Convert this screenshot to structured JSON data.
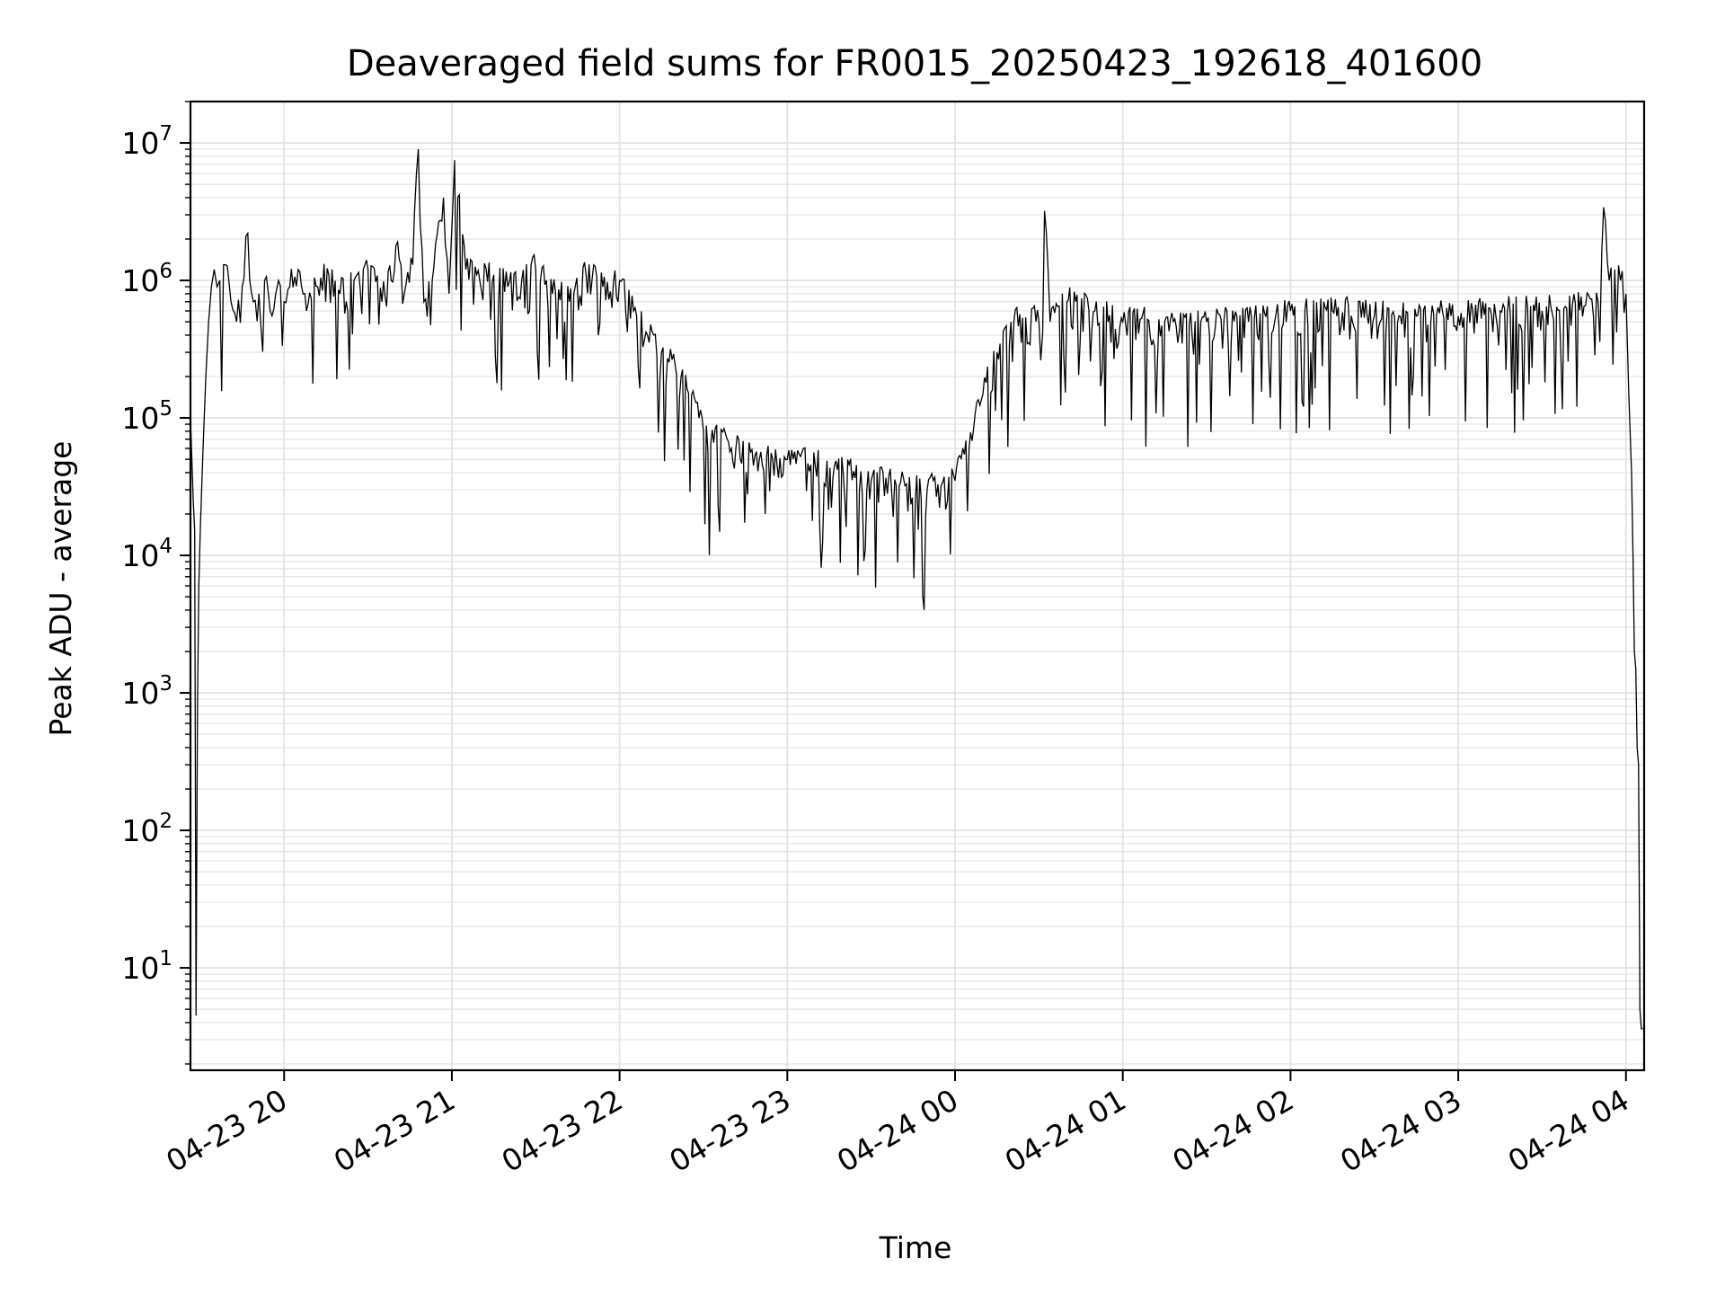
{
  "chart_data": {
    "type": "line",
    "title": "Deaveraged field sums for FR0015_20250423_192618_401600",
    "xlabel": "Time",
    "ylabel": "Peak ADU - average",
    "yscale": "log",
    "ylim": [
      1.8,
      20000000
    ],
    "xlim": [
      "2025-04-23 19:26:30",
      "2025-04-24 04:06:30"
    ],
    "grid": true,
    "line_color": "#000000",
    "grid_color": "#e3e3e3",
    "x_ticks": [
      {
        "value": "2025-04-23 20:00",
        "label": "04-23 20"
      },
      {
        "value": "2025-04-23 21:00",
        "label": "04-23 21"
      },
      {
        "value": "2025-04-23 22:00",
        "label": "04-23 22"
      },
      {
        "value": "2025-04-23 23:00",
        "label": "04-23 23"
      },
      {
        "value": "2025-04-24 00:00",
        "label": "04-24 00"
      },
      {
        "value": "2025-04-24 01:00",
        "label": "04-24 01"
      },
      {
        "value": "2025-04-24 02:00",
        "label": "04-24 02"
      },
      {
        "value": "2025-04-24 03:00",
        "label": "04-24 03"
      },
      {
        "value": "2025-04-24 04:00",
        "label": "04-24 04"
      }
    ],
    "y_ticks": [
      {
        "value": 10,
        "base": "10",
        "exp": "1"
      },
      {
        "value": 100,
        "base": "10",
        "exp": "2"
      },
      {
        "value": 1000,
        "base": "10",
        "exp": "3"
      },
      {
        "value": 10000,
        "base": "10",
        "exp": "4"
      },
      {
        "value": 100000,
        "base": "10",
        "exp": "5"
      },
      {
        "value": 1000000,
        "base": "10",
        "exp": "6"
      },
      {
        "value": 10000000,
        "base": "10",
        "exp": "7"
      }
    ],
    "series": [
      {
        "x": [
          "2025-04-23 19:26:30",
          "2025-04-23 19:27:30",
          "2025-04-23 19:28:00",
          "2025-04-23 19:28:30",
          "2025-04-23 19:29:00",
          "2025-04-23 19:29:30",
          "2025-04-23 19:30:00",
          "2025-04-23 19:31:00",
          "2025-04-23 19:32:00",
          "2025-04-23 19:33:00",
          "2025-04-23 19:34:00",
          "2025-04-23 19:35:00",
          "2025-04-23 19:36:00",
          "2025-04-23 19:37:00",
          "2025-04-23 19:39:00",
          "2025-04-23 19:41:00",
          "2025-04-23 19:43:00",
          "2025-04-23 19:45:00",
          "2025-04-23 19:47:00",
          "2025-04-23 19:49:00",
          "2025-04-23 19:51:00",
          "2025-04-23 19:53:00",
          "2025-04-23 19:55:00",
          "2025-04-23 19:57:00",
          "2025-04-23 19:58:00",
          "2025-04-23 20:00:00",
          "2025-04-23 20:02:00",
          "2025-04-23 20:05:00",
          "2025-04-23 20:08:00",
          "2025-04-23 20:12:00",
          "2025-04-23 20:16:00",
          "2025-04-23 20:20:00",
          "2025-04-23 20:25:00",
          "2025-04-23 20:30:00",
          "2025-04-23 20:35:00",
          "2025-04-23 20:40:00",
          "2025-04-23 20:43:00",
          "2025-04-23 20:46:00",
          "2025-04-23 20:48:00",
          "2025-04-23 20:50:00",
          "2025-04-23 20:53:00",
          "2025-04-23 20:57:00",
          "2025-04-23 20:59:00",
          "2025-04-23 21:01:00",
          "2025-04-23 21:05:00",
          "2025-04-23 21:10:00",
          "2025-04-23 21:15:00",
          "2025-04-23 21:20:00",
          "2025-04-23 21:25:00",
          "2025-04-23 21:30:00",
          "2025-04-23 21:36:00",
          "2025-04-23 21:42:00",
          "2025-04-23 21:48:00",
          "2025-04-23 21:54:00",
          "2025-04-23 22:00:00",
          "2025-04-23 22:05:00",
          "2025-04-23 22:10:00",
          "2025-04-23 22:15:00",
          "2025-04-23 22:22:00",
          "2025-04-23 22:30:00",
          "2025-04-23 22:40:00",
          "2025-04-23 22:50:00",
          "2025-04-23 23:00:00",
          "2025-04-23 23:10:00",
          "2025-04-23 23:20:00",
          "2025-04-23 23:30:00",
          "2025-04-23 23:40:00",
          "2025-04-23 23:50:00",
          "2025-04-23 23:55:00",
          "2025-04-24 00:00:00",
          "2025-04-24 00:05:00",
          "2025-04-24 00:10:00",
          "2025-04-24 00:15:00",
          "2025-04-24 00:20:00",
          "2025-04-24 00:30:00",
          "2025-04-24 00:32:00",
          "2025-04-24 00:34:00",
          "2025-04-24 00:40:00",
          "2025-04-24 00:50:00",
          "2025-04-24 01:00:00",
          "2025-04-24 01:15:00",
          "2025-04-24 01:30:00",
          "2025-04-24 01:45:00",
          "2025-04-24 02:00:00",
          "2025-04-24 02:15:00",
          "2025-04-24 02:30:00",
          "2025-04-24 02:45:00",
          "2025-04-24 03:00:00",
          "2025-04-24 03:15:00",
          "2025-04-24 03:30:00",
          "2025-04-24 03:45:00",
          "2025-04-24 03:50:00",
          "2025-04-24 03:52:00",
          "2025-04-24 03:54:00",
          "2025-04-24 03:56:00",
          "2025-04-24 03:58:00",
          "2025-04-24 04:00:00",
          "2025-04-24 04:01:00",
          "2025-04-24 04:02:00",
          "2025-04-24 04:02:30",
          "2025-04-24 04:03:00",
          "2025-04-24 04:03:30",
          "2025-04-24 04:04:00",
          "2025-04-24 04:04:30",
          "2025-04-24 04:05:00",
          "2025-04-24 04:05:30",
          "2025-04-24 04:06:00"
        ],
        "y": [
          100000,
          25000,
          15000,
          4.5,
          800,
          6000,
          15000,
          60000,
          200000,
          500000,
          900000,
          1200000,
          900000,
          1000000,
          1300000,
          700000,
          500000,
          900000,
          2200000,
          700000,
          800000,
          1000000,
          600000,
          800000,
          1000000,
          700000,
          900000,
          1200000,
          600000,
          900000,
          1100000,
          800000,
          1000000,
          1200000,
          700000,
          1800000,
          800000,
          1300000,
          9000000,
          700000,
          1000000,
          4000000,
          800000,
          7500000,
          1200000,
          1000000,
          1100000,
          900000,
          1000000,
          1200000,
          800000,
          700000,
          1100000,
          900000,
          1000000,
          600000,
          400000,
          300000,
          200000,
          80000,
          60000,
          50000,
          50000,
          45000,
          40000,
          35000,
          32000,
          30000,
          32000,
          35000,
          60000,
          150000,
          300000,
          500000,
          500000,
          3200000,
          500000,
          700000,
          600000,
          500000,
          500000,
          500000,
          500000,
          600000,
          600000,
          550000,
          550000,
          550000,
          600000,
          600000,
          650000,
          700000,
          3400000,
          1000000,
          1200000,
          1000000,
          800000,
          150000,
          40000,
          10000,
          2000,
          1500,
          400,
          300,
          5,
          3.6,
          3.6
        ]
      }
    ]
  }
}
